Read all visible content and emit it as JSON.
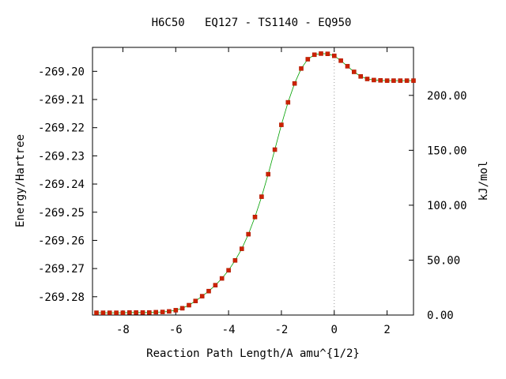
{
  "chart_data": {
    "type": "line",
    "title": "H6C50   EQ127 - TS1140 - EQ950",
    "xlabel": "Reaction Path Length/A amu^{1/2}",
    "ylabel": "Energy/Hartree",
    "y2label": "kJ/mol",
    "xlim": [
      -9.15,
      3.0
    ],
    "ylim": [
      -269.2865,
      -269.1915
    ],
    "y2lim": [
      0,
      243.7
    ],
    "grid": false,
    "x_ticks": [
      -8,
      -6,
      -4,
      -2,
      0,
      2
    ],
    "x_tick_labels": [
      "-8",
      "-6",
      "-4",
      "-2",
      "0",
      "2"
    ],
    "y_ticks": [
      -269.2,
      -269.21,
      -269.22,
      -269.23,
      -269.24,
      -269.25,
      -269.26,
      -269.27,
      -269.28
    ],
    "y_tick_labels": [
      "-269.20",
      "-269.21",
      "-269.22",
      "-269.23",
      "-269.24",
      "-269.25",
      "-269.26",
      "-269.27",
      "-269.28"
    ],
    "y2_ticks": [
      0,
      50,
      100,
      150,
      200
    ],
    "y2_tick_labels": [
      "0.00",
      "50.00",
      "100.00",
      "150.00",
      "200.00"
    ],
    "colors": {
      "points": "#cc2200",
      "line": "#00a000",
      "ts_marker": "#999999"
    },
    "series": [
      {
        "x": [
          -9.0,
          -8.75,
          -8.5,
          -8.25,
          -8.0,
          -7.75,
          -7.5,
          -7.25,
          -7.0,
          -6.75,
          -6.5,
          -6.25,
          -6.0,
          -5.75,
          -5.5,
          -5.25,
          -5.0,
          -4.75,
          -4.5,
          -4.25,
          -4.0,
          -3.75,
          -3.5,
          -3.25,
          -3.0,
          -2.75,
          -2.5,
          -2.25,
          -2.0,
          -1.75,
          -1.5,
          -1.25,
          -1.0,
          -0.75,
          -0.5,
          -0.25,
          0.0,
          0.25,
          0.5,
          0.75,
          1.0,
          1.25,
          1.5,
          1.75,
          2.0,
          2.25,
          2.5,
          2.75,
          3.0
        ],
        "y": [
          -269.2857,
          -269.2857,
          -269.2857,
          -269.2857,
          -269.2857,
          -269.2856,
          -269.2856,
          -269.2856,
          -269.2856,
          -269.2855,
          -269.2854,
          -269.2852,
          -269.2848,
          -269.2841,
          -269.283,
          -269.2815,
          -269.2798,
          -269.278,
          -269.2759,
          -269.2735,
          -269.2706,
          -269.2671,
          -269.263,
          -269.2578,
          -269.2517,
          -269.2445,
          -269.2365,
          -269.2278,
          -269.219,
          -269.211,
          -269.2043,
          -269.199,
          -269.1957,
          -269.1941,
          -269.1937,
          -269.1938,
          -269.1945,
          -269.1962,
          -269.1982,
          -269.2002,
          -269.2018,
          -269.2027,
          -269.2031,
          -269.2032,
          -269.2033,
          -269.2033,
          -269.2033,
          -269.2033,
          -269.2033
        ]
      }
    ]
  }
}
